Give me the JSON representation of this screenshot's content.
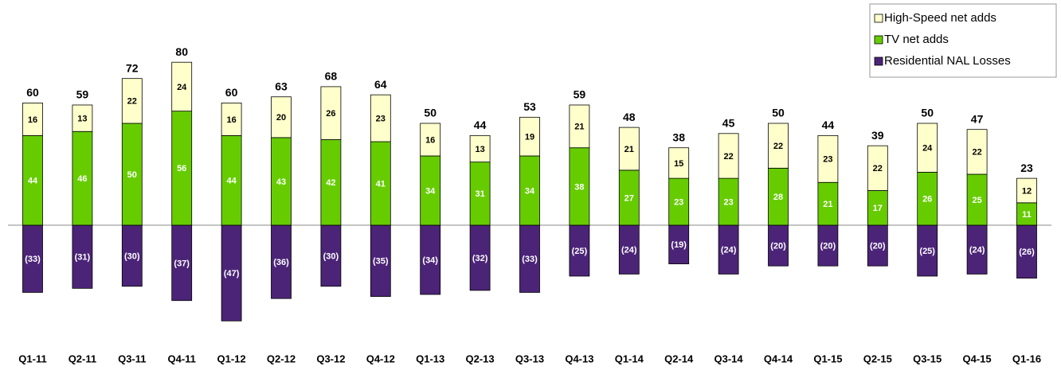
{
  "chart_data": {
    "type": "stacked-bar",
    "categories": [
      "Q1-11",
      "Q2-11",
      "Q3-11",
      "Q4-11",
      "Q1-12",
      "Q2-12",
      "Q3-12",
      "Q4-12",
      "Q1-13",
      "Q2-13",
      "Q3-13",
      "Q4-13",
      "Q1-14",
      "Q2-14",
      "Q3-14",
      "Q4-14",
      "Q1-15",
      "Q2-15",
      "Q3-15",
      "Q4-15",
      "Q1-16"
    ],
    "series": [
      {
        "name": "Residential NAL Losses",
        "color": "#4b2477",
        "values": [
          -33,
          -31,
          -30,
          -37,
          -47,
          -36,
          -30,
          -35,
          -34,
          -32,
          -33,
          -25,
          -24,
          -19,
          -24,
          -20,
          -20,
          -20,
          -25,
          -24,
          -26
        ],
        "value_labels": [
          "(33)",
          "(31)",
          "(30)",
          "(37)",
          "(47)",
          "(36)",
          "(30)",
          "(35)",
          "(34)",
          "(32)",
          "(33)",
          "(25)",
          "(24)",
          "(19)",
          "(24)",
          "(20)",
          "(20)",
          "(20)",
          "(25)",
          "(24)",
          "(26)"
        ]
      },
      {
        "name": "TV net adds",
        "color": "#66cc00",
        "values": [
          44,
          46,
          50,
          56,
          44,
          43,
          42,
          41,
          34,
          31,
          34,
          38,
          27,
          23,
          23,
          28,
          21,
          17,
          26,
          25,
          11
        ]
      },
      {
        "name": "High-Speed net adds",
        "color": "#ffffcc",
        "values": [
          16,
          13,
          22,
          24,
          16,
          20,
          26,
          23,
          16,
          13,
          19,
          21,
          21,
          15,
          22,
          22,
          23,
          22,
          24,
          22,
          12
        ]
      }
    ],
    "totals": [
      60,
      59,
      72,
      80,
      60,
      63,
      68,
      64,
      50,
      44,
      53,
      59,
      48,
      38,
      45,
      50,
      44,
      39,
      50,
      47,
      23
    ],
    "legend": "top-right"
  }
}
